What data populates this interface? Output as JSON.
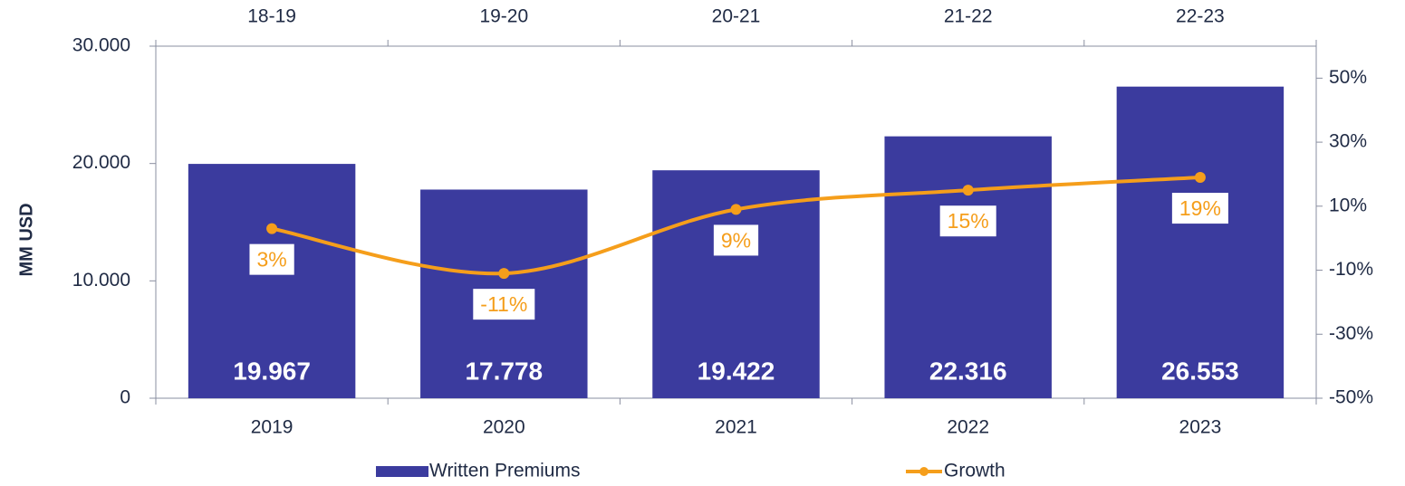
{
  "chart_data": {
    "type": "bar_line",
    "y_label": "MM USD",
    "categories": [
      "2019",
      "2020",
      "2021",
      "2022",
      "2023"
    ],
    "x2_categories": [
      "18-19",
      "19-20",
      "20-21",
      "21-22",
      "22-23"
    ],
    "series": [
      {
        "name": "Written Premiums",
        "type": "bar",
        "axis": "y",
        "color": "#3b3b9e",
        "values": [
          19967,
          17778,
          19422,
          22316,
          26553
        ],
        "value_labels": [
          "19.967",
          "17.778",
          "19.422",
          "22.316",
          "26.553"
        ]
      },
      {
        "name": "Growth",
        "type": "line",
        "axis": "y2",
        "color": "#f59e1b",
        "values": [
          3,
          -11,
          9,
          15,
          19
        ],
        "value_labels": [
          "3%",
          "-11%",
          "9%",
          "15%",
          "19%"
        ]
      }
    ],
    "ylim": [
      0,
      30000
    ],
    "yticks": [
      0,
      {
        "value": 10000,
        "label": "10.000"
      },
      {
        "value": 20000,
        "label": "20.000"
      },
      {
        "value": 30000,
        "label": "30.000"
      }
    ],
    "y2lim": [
      -50,
      60
    ],
    "y2ticks": [
      {
        "value": -50,
        "label": "-50%"
      },
      {
        "value": -30,
        "label": "-30%"
      },
      {
        "value": -10,
        "label": "-10%"
      },
      {
        "value": 10,
        "label": "10%"
      },
      {
        "value": 30,
        "label": "30%"
      },
      {
        "value": 50,
        "label": "50%"
      }
    ],
    "legend": "bottom"
  }
}
